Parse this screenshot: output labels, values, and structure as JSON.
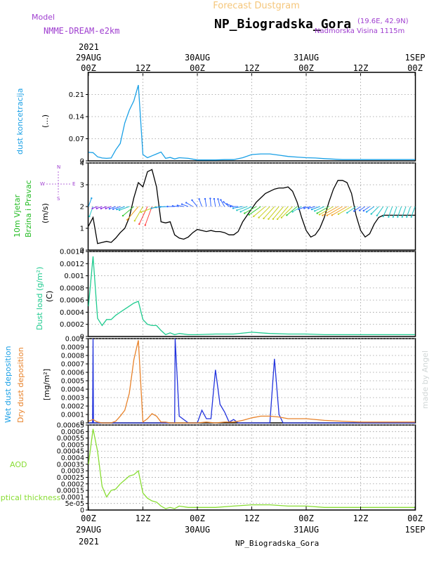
{
  "header": {
    "supertitle": "Forecast Dustgram",
    "station": "NP_Biogradska_Gora",
    "coords": "(19.6E, 42.9N)",
    "altitude": "Nadmorska Visina 1115m",
    "model_label": "Model",
    "model_name": "NMME-DREAM-e2km",
    "footer_station": "NP_Biogradska_Gora",
    "watermark": "made by Angel"
  },
  "time_axis": {
    "year": "2021",
    "ticks": [
      {
        "h": 0,
        "top": "00Z",
        "bottom": "29AUG"
      },
      {
        "h": 12,
        "top": "12Z",
        "bottom": ""
      },
      {
        "h": 24,
        "top": "00Z",
        "bottom": "30AUG"
      },
      {
        "h": 36,
        "top": "12Z",
        "bottom": ""
      },
      {
        "h": 48,
        "top": "00Z",
        "bottom": "31AUG"
      },
      {
        "h": 60,
        "top": "12Z",
        "bottom": ""
      },
      {
        "h": 72,
        "top": "00Z",
        "bottom": "1SEP"
      }
    ],
    "colors": {
      "series_primary": "#1aa0e6",
      "wind_speed": "#000000",
      "dust_load": "#1fcb8f",
      "wet": "#2233dd",
      "dry": "#e8822a",
      "aod": "#88dd33",
      "axis_frame": "#000000",
      "grid": "#9a9a9a"
    }
  },
  "chart_data": [
    {
      "type": "line",
      "panel": "concentration",
      "ylabel": "dust koncetracija",
      "units": "(...)",
      "ylim": [
        0,
        0.28
      ],
      "yticks": [
        "0",
        "0.07",
        "0.14",
        "0.21"
      ],
      "series": [
        {
          "x": [
            0,
            1,
            2,
            3,
            4,
            5,
            6,
            7,
            8,
            9,
            10,
            11,
            12,
            13,
            14,
            15,
            16,
            17,
            18,
            19,
            20,
            22,
            24,
            26,
            28,
            30,
            32,
            34,
            36,
            38,
            40,
            42,
            44,
            46,
            48,
            50,
            52,
            56,
            60,
            64,
            68,
            72
          ],
          "y": [
            0.027,
            0.026,
            0.013,
            0.009,
            0.008,
            0.009,
            0.035,
            0.055,
            0.12,
            0.16,
            0.19,
            0.24,
            0.02,
            0.01,
            0.016,
            0.022,
            0.028,
            0.008,
            0.011,
            0.006,
            0.01,
            0.008,
            0.003,
            0.003,
            0.003,
            0.004,
            0.004,
            0.01,
            0.02,
            0.022,
            0.022,
            0.018,
            0.014,
            0.012,
            0.01,
            0.009,
            0.007,
            0.004,
            0.004,
            0.004,
            0.004,
            0.004
          ]
        }
      ]
    },
    {
      "type": "line",
      "panel": "wind",
      "ylabel": "10m Vjetar Brzina i Pravac",
      "units": "(m/s)",
      "ylim": [
        0,
        4
      ],
      "yticks": [
        "0",
        "1",
        "2",
        "3",
        "4"
      ],
      "compass": {
        "n": "N",
        "s": "S",
        "w": "W",
        "e": "E"
      },
      "series": [
        {
          "x": [
            0,
            1,
            2,
            3,
            4,
            5,
            6,
            7,
            8,
            9,
            10,
            11,
            12,
            13,
            14,
            15,
            16,
            17,
            18,
            19,
            20,
            21,
            22,
            23,
            24,
            25,
            26,
            27,
            28,
            29,
            30,
            31,
            32,
            33,
            34,
            35,
            36,
            37,
            38,
            39,
            40,
            41,
            42,
            43,
            44,
            45,
            46,
            47,
            48,
            49,
            50,
            51,
            52,
            53,
            54,
            55,
            56,
            57,
            58,
            59,
            60,
            61,
            62,
            63,
            64,
            65,
            66,
            67,
            68,
            69,
            70,
            71,
            72
          ],
          "y": [
            1.1,
            1.5,
            0.3,
            0.35,
            0.4,
            0.35,
            0.55,
            0.8,
            1.0,
            1.5,
            2.4,
            3.1,
            2.9,
            3.6,
            3.7,
            2.9,
            1.3,
            1.25,
            1.3,
            0.7,
            0.55,
            0.5,
            0.6,
            0.8,
            0.95,
            0.9,
            0.85,
            0.9,
            0.85,
            0.85,
            0.8,
            0.7,
            0.7,
            0.85,
            1.3,
            1.6,
            1.9,
            2.2,
            2.4,
            2.6,
            2.7,
            2.8,
            2.85,
            2.85,
            2.9,
            2.7,
            2.2,
            1.5,
            0.9,
            0.6,
            0.7,
            1.0,
            1.5,
            2.2,
            2.8,
            3.2,
            3.2,
            3.1,
            2.6,
            1.6,
            0.9,
            0.6,
            0.75,
            1.2,
            1.5,
            1.6,
            1.6,
            1.6,
            1.6,
            1.6,
            1.6,
            1.6,
            1.6
          ]
        }
      ],
      "arrows": {
        "x": [
          0,
          1,
          2,
          3,
          4,
          5,
          6,
          7,
          8,
          9,
          10,
          11,
          12,
          13,
          14,
          15,
          16,
          17,
          18,
          19,
          20,
          21,
          22,
          23,
          24,
          25,
          26,
          27,
          28,
          29,
          30,
          31,
          32,
          33,
          34,
          35,
          36,
          37,
          38,
          39,
          40,
          41,
          42,
          43,
          44,
          45,
          46,
          47,
          48,
          49,
          50,
          51,
          52,
          53,
          54,
          55,
          56,
          57,
          58,
          59,
          60,
          61,
          62,
          63,
          64,
          65,
          66,
          67,
          68,
          69,
          70,
          71,
          72
        ],
        "dir": [
          20,
          200,
          250,
          250,
          250,
          250,
          250,
          250,
          250,
          250,
          230,
          220,
          210,
          205,
          200,
          250,
          260,
          265,
          268,
          270,
          275,
          280,
          290,
          300,
          320,
          340,
          350,
          355,
          350,
          345,
          330,
          310,
          290,
          270,
          260,
          250,
          245,
          240,
          235,
          230,
          225,
          222,
          220,
          220,
          220,
          225,
          230,
          240,
          250,
          255,
          255,
          250,
          245,
          240,
          240,
          240,
          240,
          240,
          240,
          235,
          235,
          235,
          235,
          235,
          225,
          215,
          205,
          200,
          200,
          200,
          200,
          200,
          200
        ],
        "speed": [
          1.1,
          1.5,
          0.3,
          0.35,
          0.4,
          0.35,
          0.55,
          0.8,
          1.0,
          1.5,
          2.4,
          3.1,
          2.9,
          3.6,
          3.7,
          2.9,
          1.3,
          1.25,
          1.3,
          0.7,
          0.55,
          0.5,
          0.6,
          0.8,
          0.95,
          0.9,
          0.85,
          0.9,
          0.85,
          0.85,
          0.8,
          0.7,
          0.7,
          0.85,
          1.3,
          1.6,
          1.9,
          2.2,
          2.4,
          2.6,
          2.7,
          2.8,
          2.85,
          2.85,
          2.9,
          2.7,
          2.2,
          1.5,
          0.9,
          0.6,
          0.7,
          1.0,
          1.5,
          2.2,
          2.8,
          3.2,
          3.2,
          3.1,
          2.6,
          1.6,
          0.9,
          0.6,
          0.75,
          1.2,
          1.5,
          1.6,
          1.6,
          1.6,
          1.6,
          1.6,
          1.6,
          1.6,
          1.6
        ]
      }
    },
    {
      "type": "line",
      "panel": "load",
      "ylabel": "Dust load (g/m²)",
      "units": "(C)",
      "ylim": [
        0,
        0.0014
      ],
      "yticks": [
        "0",
        "0.0002",
        "0.0004",
        "0.0006",
        "0.0008",
        "0.001",
        "0.0012",
        "0.0014"
      ],
      "series": [
        {
          "x": [
            0,
            0.5,
            1,
            2,
            3,
            4,
            5,
            6,
            7,
            8,
            9,
            10,
            11,
            12,
            13,
            14,
            15,
            16,
            17,
            18,
            19,
            20,
            22,
            24,
            28,
            32,
            36,
            40,
            44,
            48,
            52,
            56,
            60,
            64,
            68,
            72
          ],
          "y": [
            0.0005,
            0.0009,
            0.00132,
            0.0003,
            0.00018,
            0.00028,
            0.00028,
            0.00035,
            0.0004,
            0.00045,
            0.0005,
            0.00055,
            0.00058,
            0.00028,
            0.0002,
            0.00018,
            0.00018,
            0.0001,
            3e-05,
            6e-05,
            3e-05,
            5e-05,
            3e-05,
            3e-05,
            4e-05,
            4e-05,
            7e-05,
            5e-05,
            4e-05,
            4e-05,
            3e-05,
            3e-05,
            3e-05,
            3e-05,
            3e-05,
            3e-05
          ]
        }
      ]
    },
    {
      "type": "line",
      "panel": "deposition",
      "ylabel_wet": "Wet dust deposition",
      "ylabel_dry": "Dry dust deposition",
      "units": "[mg/m²]",
      "ylim": [
        0,
        0.001
      ],
      "yticks": [
        "0",
        "0.0001",
        "0.0002",
        "0.0003",
        "0.0004",
        "0.0005",
        "0.0006",
        "0.0007",
        "0.0008",
        "0.0009",
        "0.001"
      ],
      "series": [
        {
          "name": "Wet dust deposition",
          "x": [
            0,
            0.9,
            1,
            1.1,
            2,
            19,
            19.1,
            20,
            22,
            24,
            25,
            26,
            27,
            28,
            29,
            30,
            31,
            32,
            33,
            34,
            35,
            36,
            38,
            40,
            41,
            42,
            42.9,
            43,
            44,
            72
          ],
          "y": [
            0,
            0,
            0.0012,
            0,
            0,
            0,
            0.0012,
            8e-05,
            0.0,
            0.0,
            0.00015,
            5e-05,
            5e-05,
            0.00063,
            0.00022,
            0.00013,
            1e-05,
            4e-05,
            0.0,
            0.0,
            0.0,
            0.0,
            0.0,
            0.0,
            0.00076,
            0.0001,
            0.0,
            0.0,
            0.0,
            0.0
          ]
        },
        {
          "name": "Dry dust deposition",
          "x": [
            0,
            1,
            2,
            3,
            4,
            5,
            6,
            7,
            8,
            9,
            10,
            11,
            12,
            13,
            14,
            15,
            16,
            17,
            18,
            19,
            20,
            22,
            24,
            26,
            28,
            30,
            32,
            34,
            36,
            38,
            40,
            42,
            44,
            48,
            52,
            56,
            60,
            64,
            68,
            72
          ],
          "y": [
            2e-05,
            4e-05,
            1e-05,
            0.0,
            0.0,
            0.0,
            2e-05,
            8e-05,
            0.00015,
            0.00035,
            0.00075,
            0.00098,
            1e-05,
            5e-05,
            0.00011,
            8e-05,
            1e-05,
            1e-05,
            0.0,
            0.0,
            0.0,
            0.0,
            0.0,
            1e-05,
            0.0,
            1e-05,
            1e-05,
            3e-05,
            6e-05,
            8e-05,
            8e-05,
            7e-05,
            5e-05,
            5e-05,
            3e-05,
            2e-05,
            1e-05,
            1e-05,
            1e-05,
            1e-05
          ]
        }
      ]
    },
    {
      "type": "line",
      "panel": "aod",
      "ylabel": "AOD",
      "ylabel2": "optical thickness",
      "ylim": [
        0,
        0.00065
      ],
      "yticks": [
        "0",
        "5e-05",
        "0.0001",
        "0.00015",
        "0.0002",
        "0.00025",
        "0.0003",
        "0.00035",
        "0.0004",
        "0.00045",
        "0.0005",
        "0.00055",
        "0.0006",
        "0.00065"
      ],
      "series": [
        {
          "x": [
            0,
            1,
            2,
            3,
            4,
            5,
            6,
            7,
            8,
            9,
            10,
            11,
            12,
            13,
            14,
            15,
            16,
            17,
            18,
            19,
            20,
            22,
            24,
            28,
            32,
            36,
            40,
            44,
            48,
            52,
            56,
            60,
            64,
            68,
            72
          ],
          "y": [
            0.00035,
            0.00062,
            0.00045,
            0.00018,
            0.0001,
            0.00015,
            0.00016,
            0.0002,
            0.00023,
            0.00026,
            0.00027,
            0.0003,
            0.00013,
            9e-05,
            7e-05,
            6e-05,
            3e-05,
            1e-05,
            2e-05,
            1e-05,
            3e-05,
            2e-05,
            2e-05,
            2e-05,
            3e-05,
            4e-05,
            4e-05,
            3e-05,
            3e-05,
            2e-05,
            2e-05,
            2e-05,
            2e-05,
            2e-05,
            2e-05
          ]
        }
      ]
    }
  ]
}
